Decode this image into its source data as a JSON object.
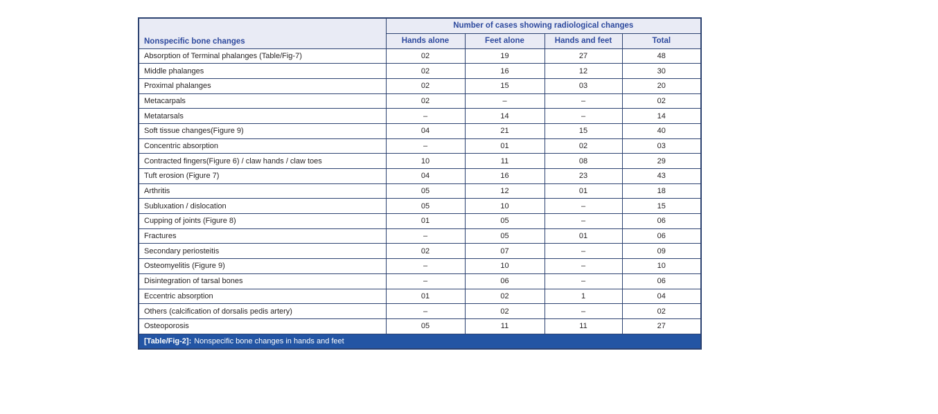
{
  "table": {
    "header": {
      "row_label_column": "Nonspecific bone changes",
      "group_header": "Number of cases showing radiological changes",
      "columns": [
        "Hands alone",
        "Feet alone",
        "Hands and feet",
        "Total"
      ]
    },
    "rows": [
      {
        "label": "Absorption of Terminal phalanges (Table/Fig-7)",
        "values": [
          "02",
          "19",
          "27",
          "48"
        ]
      },
      {
        "label": "Middle phalanges",
        "values": [
          "02",
          "16",
          "12",
          "30"
        ]
      },
      {
        "label": "Proximal phalanges",
        "values": [
          "02",
          "15",
          "03",
          "20"
        ]
      },
      {
        "label": "Metacarpals",
        "values": [
          "02",
          "–",
          "–",
          "02"
        ]
      },
      {
        "label": "Metatarsals",
        "values": [
          "–",
          "14",
          "–",
          "14"
        ]
      },
      {
        "label": "Soft tissue changes(Figure 9)",
        "values": [
          "04",
          "21",
          "15",
          "40"
        ]
      },
      {
        "label": "Concentric absorption",
        "values": [
          "–",
          "01",
          "02",
          "03"
        ]
      },
      {
        "label": "Contracted fingers(Figure 6) / claw hands / claw toes",
        "values": [
          "10",
          "11",
          "08",
          "29"
        ]
      },
      {
        "label": "Tuft erosion (Figure 7)",
        "values": [
          "04",
          "16",
          "23",
          "43"
        ]
      },
      {
        "label": "Arthritis",
        "values": [
          "05",
          "12",
          "01",
          "18"
        ]
      },
      {
        "label": "Subluxation / dislocation",
        "values": [
          "05",
          "10",
          "–",
          "15"
        ]
      },
      {
        "label": "Cupping of joints (Figure 8)",
        "values": [
          "01",
          "05",
          "–",
          "06"
        ]
      },
      {
        "label": "Fractures",
        "values": [
          "–",
          "05",
          "01",
          "06"
        ]
      },
      {
        "label": "Secondary periosteitis",
        "values": [
          "02",
          "07",
          "–",
          "09"
        ]
      },
      {
        "label": "Osteomyelitis (Figure 9)",
        "values": [
          "–",
          "10",
          "–",
          "10"
        ]
      },
      {
        "label": "Disintegration of tarsal bones",
        "values": [
          "–",
          "06",
          "–",
          "06"
        ]
      },
      {
        "label": "Eccentric absorption",
        "values": [
          "01",
          "02",
          "1",
          "04"
        ]
      },
      {
        "label": "Others (calcification of dorsalis pedis artery)",
        "values": [
          "–",
          "02",
          "–",
          "02"
        ]
      },
      {
        "label": "Osteoporosis",
        "values": [
          "05",
          "11",
          "11",
          "27"
        ]
      }
    ],
    "caption_label": "[Table/Fig-2]:",
    "caption_text": "Nonspecific bone changes in hands and feet",
    "colors": {
      "border": "#2b4170",
      "header_bg": "#e9ebf5",
      "header_text": "#2e4a9e",
      "body_text": "#231f20",
      "caption_bg": "#2355a4",
      "caption_text": "#ffffff",
      "page_bg": "#ffffff"
    }
  }
}
